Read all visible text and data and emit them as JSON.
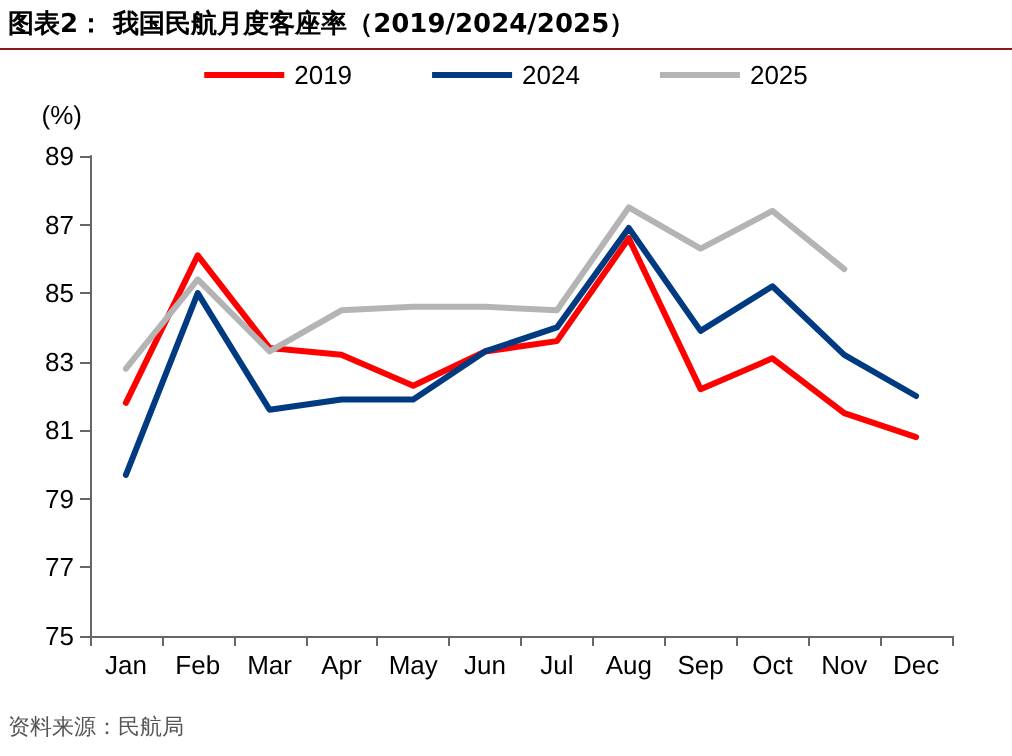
{
  "chart_data": {
    "type": "line",
    "title": "图表2：  我国民航月度客座率（2019/2024/2025）",
    "ylabel": "(%)",
    "annotations": [
      "资料来源：民航局"
    ],
    "categories": [
      "Jan",
      "Feb",
      "Mar",
      "Apr",
      "May",
      "Jun",
      "Jul",
      "Aug",
      "Sep",
      "Oct",
      "Nov",
      "Dec"
    ],
    "series": [
      {
        "name": "2019",
        "color": "#ff0000",
        "values": [
          81.8,
          86.1,
          83.4,
          83.2,
          82.3,
          83.3,
          83.6,
          86.6,
          82.2,
          83.1,
          81.5,
          80.8
        ]
      },
      {
        "name": "2024",
        "color": "#003a80",
        "values": [
          79.7,
          85.0,
          81.6,
          81.9,
          81.9,
          83.3,
          84.0,
          86.9,
          83.9,
          85.2,
          83.2,
          82.0
        ]
      },
      {
        "name": "2025",
        "color": "#b4b4b4",
        "values": [
          82.8,
          85.4,
          83.3,
          84.5,
          84.6,
          84.6,
          84.5,
          87.5,
          86.3,
          87.4,
          85.7,
          null
        ]
      }
    ],
    "ylim": [
      75,
      89
    ],
    "yticks": [
      75,
      77,
      79,
      81,
      83,
      85,
      87,
      89
    ],
    "grid": false,
    "legend": "top",
    "marker": "none",
    "line_style": "solid"
  }
}
